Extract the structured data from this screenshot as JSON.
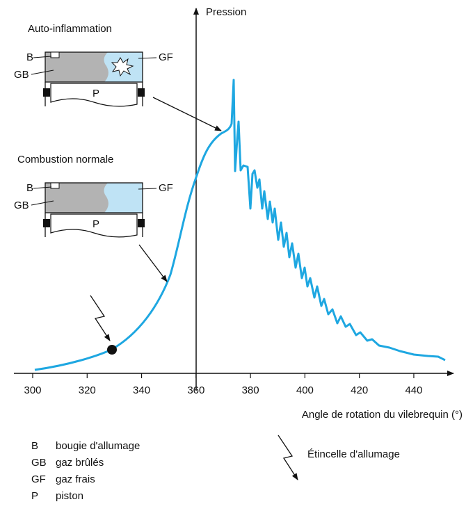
{
  "y_axis_label": "Pression",
  "x_axis_label": "Angle de rotation du vilebrequin (°)",
  "xticks": [
    300,
    320,
    340,
    360,
    380,
    400,
    420,
    440
  ],
  "panels": [
    {
      "title": "Auto-inflammation",
      "labels": [
        "B",
        "GB",
        "GF",
        "P"
      ]
    },
    {
      "title": "Combustion normale",
      "labels": [
        "B",
        "GB",
        "GF",
        "P"
      ]
    }
  ],
  "legend": [
    {
      "abbr": "B",
      "text": "bougie d'allumage"
    },
    {
      "abbr": "GB",
      "text": "gaz brûlés"
    },
    {
      "abbr": "GF",
      "text": "gaz frais"
    },
    {
      "abbr": "P",
      "text": "piston"
    }
  ],
  "spark_label": "Étincelle d'allumage"
}
